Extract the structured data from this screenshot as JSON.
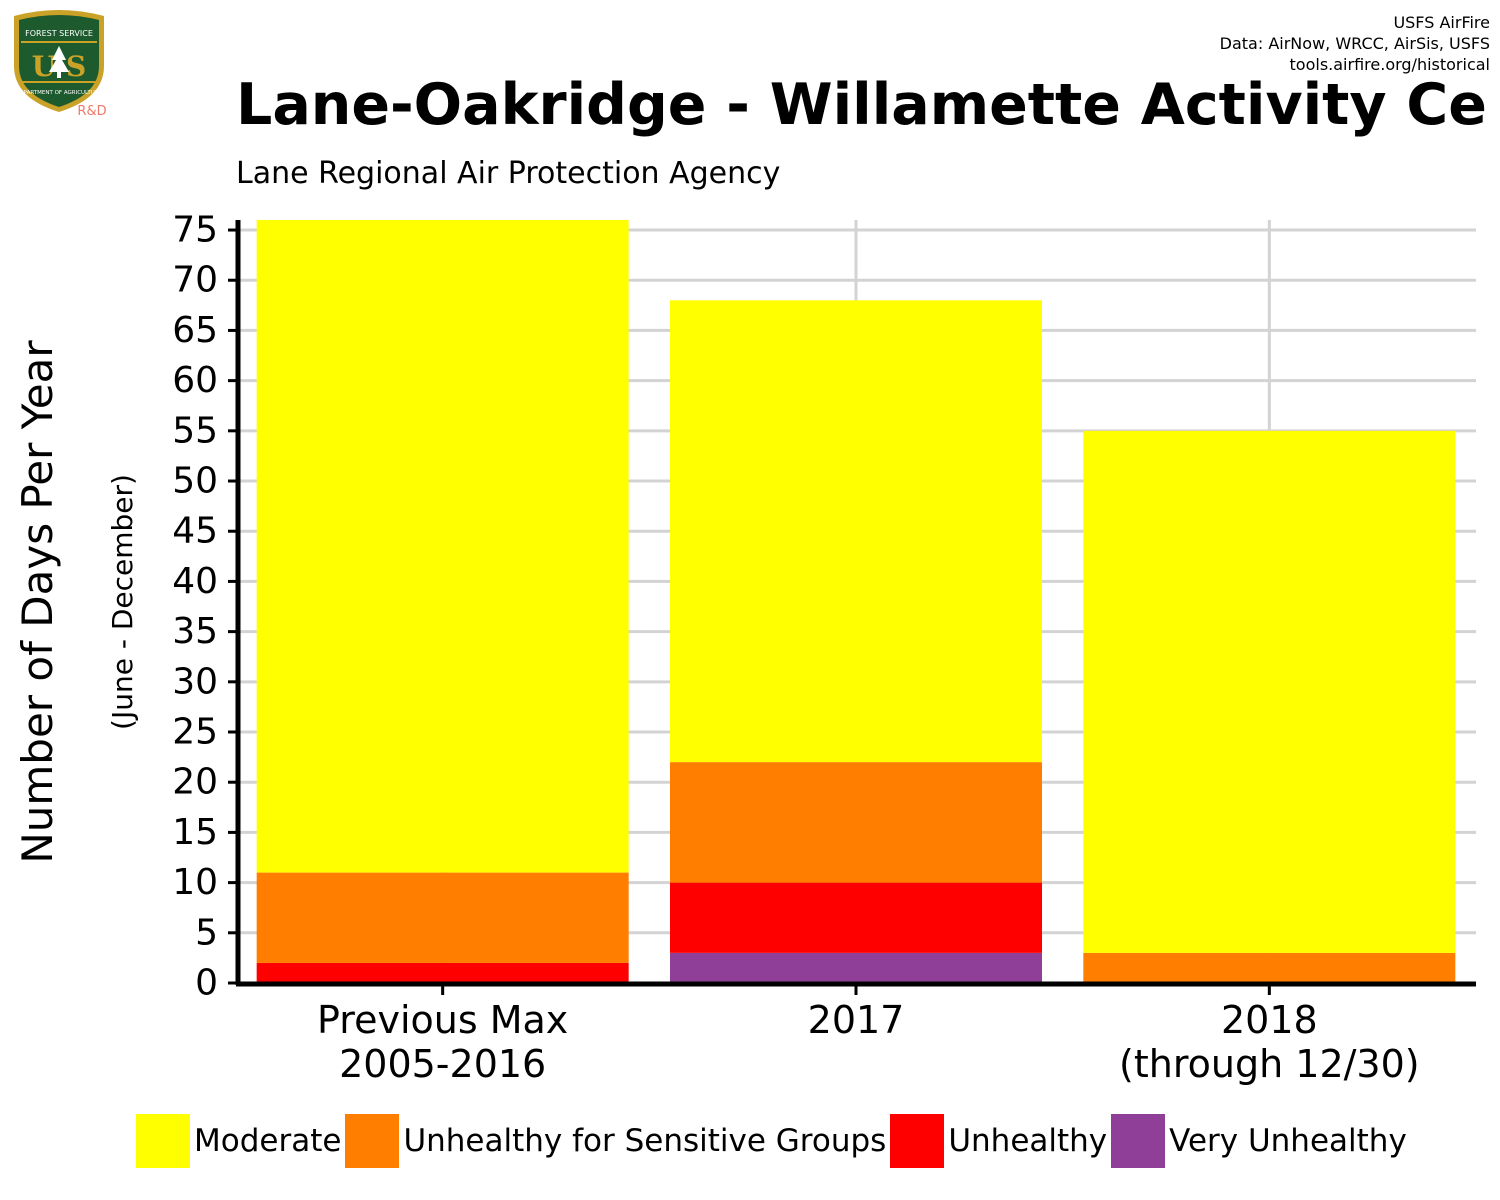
{
  "logo": {
    "icon": "usfs-shield-logo",
    "top_text": "FOREST SERVICE",
    "letters": "U S",
    "bottom_text": "DEPARTMENT OF AGRICULTURE",
    "tag": "R&D"
  },
  "credits": {
    "line1": "USFS AirFire",
    "line2": "Data: AirNow, WRCC, AirSis, USFS",
    "line3": "tools.airfire.org/historical"
  },
  "colors": {
    "Moderate": "#ffff00",
    "Unhealthy for Sensitive Groups": "#ff7e00",
    "Unhealthy": "#ff0000",
    "Very Unhealthy": "#8f3f97"
  },
  "chart_data": {
    "type": "bar",
    "stacked": true,
    "title": "Lane-Oakridge - Willamette Activity Ce",
    "subtitle": "Lane Regional Air Protection Agency",
    "ylabel": "Number of Days Per Year",
    "ylabel2": "(June - December)",
    "ylim": [
      0,
      76
    ],
    "yticks": [
      0,
      5,
      10,
      15,
      20,
      25,
      30,
      35,
      40,
      45,
      50,
      55,
      60,
      65,
      70,
      75
    ],
    "grid": true,
    "legend": "bottom",
    "categories": [
      "Previous Max\n2005-2016",
      "2017",
      "2018\n(through 12/30)"
    ],
    "series": [
      {
        "name": "Very Unhealthy",
        "values": [
          0,
          3,
          0
        ]
      },
      {
        "name": "Unhealthy",
        "values": [
          2,
          7,
          0
        ]
      },
      {
        "name": "Unhealthy for Sensitive Groups",
        "values": [
          9,
          12,
          3
        ]
      },
      {
        "name": "Moderate",
        "values": [
          65,
          46,
          52
        ]
      }
    ],
    "legend_order": [
      "Moderate",
      "Unhealthy for Sensitive Groups",
      "Unhealthy",
      "Very Unhealthy"
    ]
  }
}
